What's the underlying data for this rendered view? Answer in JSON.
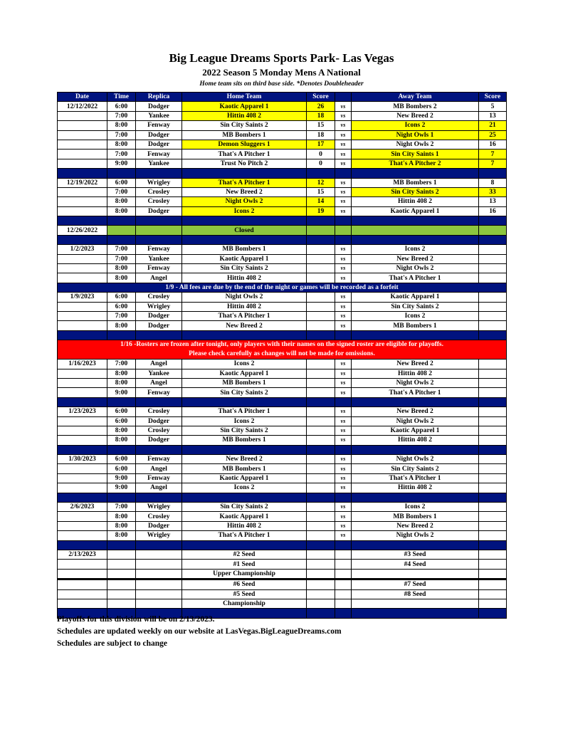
{
  "title": "Big League Dreams Sports Park- Las Vegas",
  "subtitle": "2022 Season 5 Monday Mens A National",
  "note": "Home team sits on third base side.  *Denotes Doubleheader",
  "headers": [
    "Date",
    "Time",
    "Replica",
    "Home Team",
    "Score",
    "",
    "Away Team",
    "Score"
  ],
  "vs": "vs",
  "colors": {
    "header": "#00137f",
    "winner": "#ffff00",
    "closed": "#8cc63f",
    "alert": "#ff0000"
  },
  "rows": [
    {
      "type": "game",
      "date": "12/12/2022",
      "time": "6:00",
      "field": "Dodger",
      "home": "Kaotic Apparel 1",
      "hs": "26",
      "away": "MB Bombers 2",
      "as": "5",
      "win": "home"
    },
    {
      "type": "game",
      "date": "",
      "time": "7:00",
      "field": "Yankee",
      "home": "Hittin 408 2",
      "hs": "18",
      "away": "New Breed 2",
      "as": "13",
      "win": "home"
    },
    {
      "type": "game",
      "date": "",
      "time": "8:00",
      "field": "Fenway",
      "home": "Sin City Saints 2",
      "hs": "15",
      "away": "Icons 2",
      "as": "21",
      "win": "away"
    },
    {
      "type": "game",
      "date": "",
      "time": "7:00",
      "field": "Dodger",
      "home": "MB Bombers 1",
      "hs": "18",
      "away": "Night Owls 1",
      "as": "25",
      "win": "away"
    },
    {
      "type": "game",
      "date": "",
      "time": "8:00",
      "field": "Dodger",
      "home": "Demon Sluggers 1",
      "hs": "17",
      "away": "Night Owls 2",
      "as": "16",
      "win": "home"
    },
    {
      "type": "game",
      "date": "",
      "time": "7:00",
      "field": "Fenway",
      "home": "That's A Pitcher 1",
      "hs": "0",
      "away": "Sin City Saints 1",
      "as": "7",
      "win": "away"
    },
    {
      "type": "game",
      "date": "",
      "time": "9:00",
      "field": "Yankee",
      "home": "Trust No Pitch 2",
      "hs": "0",
      "away": "That's A Pitcher 2",
      "as": "7",
      "win": "away"
    },
    {
      "type": "blank"
    },
    {
      "type": "game",
      "date": "12/19/2022",
      "time": "6:00",
      "field": "Wrigley",
      "home": "That's A Pitcher 1",
      "hs": "12",
      "away": "MB Bombers 1",
      "as": "8",
      "win": "home"
    },
    {
      "type": "game",
      "date": "",
      "time": "7:00",
      "field": "Crosley",
      "home": "New Breed 2",
      "hs": "15",
      "away": "Sin City Saints 2",
      "as": "33",
      "win": "away"
    },
    {
      "type": "game",
      "date": "",
      "time": "8:00",
      "field": "Crosley",
      "home": "Night Owls 2",
      "hs": "14",
      "away": "Hittin 408 2",
      "as": "13",
      "win": "home"
    },
    {
      "type": "game",
      "date": "",
      "time": "8:00",
      "field": "Dodger",
      "home": "Icons 2",
      "hs": "19",
      "away": "Kaotic Apparel 1",
      "as": "16",
      "win": "home"
    },
    {
      "type": "blank"
    },
    {
      "type": "closed",
      "date": "12/26/2022",
      "text": "Closed"
    },
    {
      "type": "blank"
    },
    {
      "type": "game",
      "date": "1/2/2023",
      "time": "7:00",
      "field": "Fenway",
      "home": "MB Bombers 1",
      "away": "Icons 2"
    },
    {
      "type": "game",
      "date": "",
      "time": "7:00",
      "field": "Yankee",
      "home": "Kaotic Apparel 1",
      "away": "New Breed 2"
    },
    {
      "type": "game",
      "date": "",
      "time": "8:00",
      "field": "Fenway",
      "home": "Sin City Saints 2",
      "away": "Night Owls 2"
    },
    {
      "type": "game",
      "date": "",
      "time": "8:00",
      "field": "Angel",
      "home": "Hittin 408 2",
      "away": "That's A Pitcher 1"
    },
    {
      "type": "notice",
      "text": "1/9 - All fees are due by the end of the night or games will be recorded as a forfeit"
    },
    {
      "type": "game",
      "date": "1/9/2023",
      "time": "6:00",
      "field": "Crosley",
      "home": "Night Owls 2",
      "away": "Kaotic Apparel 1"
    },
    {
      "type": "game",
      "date": "",
      "time": "6:00",
      "field": "Wrigley",
      "home": "Hittin 408 2",
      "away": "Sin City Saints 2"
    },
    {
      "type": "game",
      "date": "",
      "time": "7:00",
      "field": "Dodger",
      "home": "That's A Pitcher 1",
      "away": "Icons 2"
    },
    {
      "type": "game",
      "date": "",
      "time": "8:00",
      "field": "Dodger",
      "home": "New Breed 2",
      "away": "MB Bombers 1"
    },
    {
      "type": "blank"
    },
    {
      "type": "red",
      "line1": "1/16 -Rosters are frozen after tonight, only players with their names on the signed roster are eligible for playoffs.",
      "line2": "Please check carefully as changes will not be made for omissions."
    },
    {
      "type": "game",
      "date": "1/16/2023",
      "time": "7:00",
      "field": "Angel",
      "home": "Icons 2",
      "away": "New Breed 2"
    },
    {
      "type": "game",
      "date": "",
      "time": "8:00",
      "field": "Yankee",
      "home": "Kaotic Apparel 1",
      "away": "Hittin 408 2"
    },
    {
      "type": "game",
      "date": "",
      "time": "8:00",
      "field": "Angel",
      "home": "MB Bombers 1",
      "away": "Night Owls 2"
    },
    {
      "type": "game",
      "date": "",
      "time": "9:00",
      "field": "Fenway",
      "home": "Sin City Saints 2",
      "away": "That's A Pitcher 1"
    },
    {
      "type": "blank"
    },
    {
      "type": "game",
      "date": "1/23/2023",
      "time": "6:00",
      "field": "Crosley",
      "home": "That's A Pitcher 1",
      "away": "New Breed 2"
    },
    {
      "type": "game",
      "date": "",
      "time": "6:00",
      "field": "Dodger",
      "home": "Icons 2",
      "away": "Night Owls 2"
    },
    {
      "type": "game",
      "date": "",
      "time": "8:00",
      "field": "Crosley",
      "home": "Sin City Saints 2",
      "away": "Kaotic Apparel 1"
    },
    {
      "type": "game",
      "date": "",
      "time": "8:00",
      "field": "Dodger",
      "home": "MB Bombers 1",
      "away": "Hittin 408 2"
    },
    {
      "type": "blank"
    },
    {
      "type": "game",
      "date": "1/30/2023",
      "time": "6:00",
      "field": "Fenway",
      "home": "New Breed 2",
      "away": "Night Owls 2"
    },
    {
      "type": "game",
      "date": "",
      "time": "6:00",
      "field": "Angel",
      "home": "MB Bombers 1",
      "away": "Sin City Saints 2"
    },
    {
      "type": "game",
      "date": "",
      "time": "9:00",
      "field": "Fenway",
      "home": "Kaotic Apparel 1",
      "away": "That's A Pitcher 1"
    },
    {
      "type": "game",
      "date": "",
      "time": "9:00",
      "field": "Angel",
      "home": "Icons 2",
      "away": "Hittin 408 2"
    },
    {
      "type": "blank"
    },
    {
      "type": "game",
      "date": "2/6/2023",
      "time": "7:00",
      "field": "Wrigley",
      "home": "Sin City Saints 2",
      "away": "Icons 2"
    },
    {
      "type": "game",
      "date": "",
      "time": "8:00",
      "field": "Crosley",
      "home": "Kaotic Apparel 1",
      "away": "MB Bombers 1"
    },
    {
      "type": "game",
      "date": "",
      "time": "8:00",
      "field": "Dodger",
      "home": "Hittin 408 2",
      "away": "New Breed 2"
    },
    {
      "type": "game",
      "date": "",
      "time": "8:00",
      "field": "Wrigley",
      "home": "That's A Pitcher 1",
      "away": "Night Owls 2"
    },
    {
      "type": "blank"
    },
    {
      "type": "playoff",
      "date": "2/13/2023",
      "home": "#2 Seed",
      "away": "#3 Seed"
    },
    {
      "type": "playoff",
      "date": "",
      "home": "#1 Seed",
      "away": "#4 Seed"
    },
    {
      "type": "playoff",
      "date": "",
      "home": "Upper Championship",
      "away": "",
      "thick": true
    },
    {
      "type": "playoff",
      "date": "",
      "home": "#6 Seed",
      "away": "#7 Seed"
    },
    {
      "type": "playoff",
      "date": "",
      "home": "#5 Seed",
      "away": "#8 Seed"
    },
    {
      "type": "playoff",
      "date": "",
      "home": "Championship",
      "away": ""
    },
    {
      "type": "blank"
    }
  ],
  "footer": [
    "Playoffs for this division will be on 2/13/2023.",
    "Schedules are updated weekly on our website at LasVegas.BigLeagueDreams.com",
    "Schedules are subject to change"
  ]
}
